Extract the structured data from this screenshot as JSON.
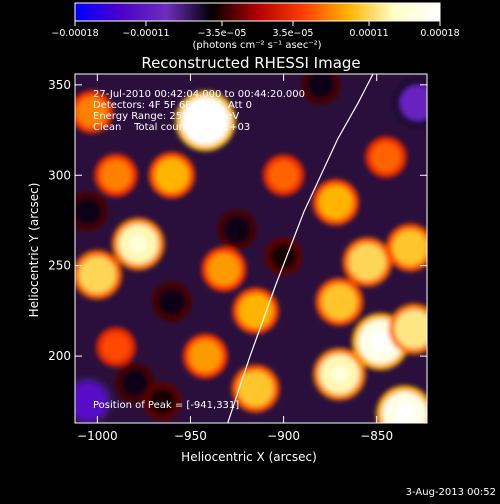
{
  "chart_data": {
    "type": "heatmap",
    "title": "Reconstructed RHESSI Image",
    "xlabel": "Heliocentric X (arcsec)",
    "ylabel": "Heliocentric Y (arcsec)",
    "xlim": [
      -1012,
      -823
    ],
    "ylim": [
      163,
      356
    ],
    "x_ticks": [
      -1000,
      -950,
      -900,
      -850
    ],
    "x_tick_labels": [
      "−1000",
      "−950",
      "−900",
      "−850"
    ],
    "y_ticks": [
      200,
      250,
      300,
      350
    ],
    "y_tick_labels": [
      "200",
      "250",
      "300",
      "350"
    ],
    "colorbar": {
      "range": [
        -0.00018,
        0.00018
      ],
      "ticks": [
        -0.00018,
        -0.00011,
        -3.5e-05,
        3.5e-05,
        0.00011,
        0.00018
      ],
      "tick_labels": [
        "−0.00018",
        "−0.00011",
        "−3.5e−05",
        "3.5e−05",
        "0.00011",
        "0.00018"
      ],
      "units_label": "(photons cm⁻² s⁻¹ asec⁻²)",
      "colormap": [
        "#0000ff",
        "#4b00c8",
        "#6f2dbe",
        "#000000",
        "#b40000",
        "#ff3c00",
        "#ffb400",
        "#ffffc8",
        "#ffffff"
      ]
    },
    "annotations": {
      "time_range": "27-Jul-2010 00:42:04.000 to 00:44:20.000",
      "detectors": "Detectors: 4F 5F 6F 7F 8F, Att 0",
      "energy_range": "Energy Range: 25.0-50.0 keV",
      "method_counts": "Clean    Total counts: 2.92E+03",
      "peak_position": "Position of Peak = [-941,331]"
    },
    "limb_curve": [
      [
        -930,
        163
      ],
      [
        -918,
        200
      ],
      [
        -904,
        240
      ],
      [
        -889,
        280
      ],
      [
        -871,
        320
      ],
      [
        -860,
        340
      ],
      [
        -852,
        356
      ]
    ],
    "emission_sources": [
      {
        "x": -942,
        "y": 330,
        "value": 0.00018
      },
      {
        "x": -960,
        "y": 300,
        "value": 9e-05
      },
      {
        "x": -990,
        "y": 300,
        "value": 7e-05
      },
      {
        "x": -978,
        "y": 262,
        "value": 0.00013
      },
      {
        "x": -1000,
        "y": 245,
        "value": 0.00011
      },
      {
        "x": -872,
        "y": 285,
        "value": 9e-05
      },
      {
        "x": -915,
        "y": 225,
        "value": 9e-05
      },
      {
        "x": -932,
        "y": 248,
        "value": 8e-05
      },
      {
        "x": -855,
        "y": 252,
        "value": 0.00011
      },
      {
        "x": -832,
        "y": 260,
        "value": 0.0001
      },
      {
        "x": -848,
        "y": 208,
        "value": 0.00016
      },
      {
        "x": -830,
        "y": 215,
        "value": 0.00012
      },
      {
        "x": -870,
        "y": 190,
        "value": 0.00013
      },
      {
        "x": -870,
        "y": 230,
        "value": 0.0001
      },
      {
        "x": -915,
        "y": 182,
        "value": 0.0001
      },
      {
        "x": -942,
        "y": 200,
        "value": 8e-05
      },
      {
        "x": -990,
        "y": 205,
        "value": 5e-05
      },
      {
        "x": -835,
        "y": 168,
        "value": 0.00016
      },
      {
        "x": -1003,
        "y": 335,
        "value": 7e-05
      },
      {
        "x": -900,
        "y": 300,
        "value": 6e-05
      },
      {
        "x": -845,
        "y": 310,
        "value": 6e-05
      },
      {
        "x": -1005,
        "y": 175,
        "value": -0.00012
      },
      {
        "x": -828,
        "y": 340,
        "value": -0.0001
      },
      {
        "x": -880,
        "y": 350,
        "value": -5e-05
      },
      {
        "x": -960,
        "y": 230,
        "value": -5e-05
      },
      {
        "x": -980,
        "y": 185,
        "value": -5e-05
      },
      {
        "x": -900,
        "y": 255,
        "value": -4e-05
      },
      {
        "x": -925,
        "y": 270,
        "value": -5e-05
      },
      {
        "x": -1005,
        "y": 280,
        "value": -5e-05
      },
      {
        "x": -965,
        "y": 175,
        "value": -4e-05
      }
    ]
  },
  "footer": {
    "date_stamp": "3-Aug-2013 00:52"
  }
}
